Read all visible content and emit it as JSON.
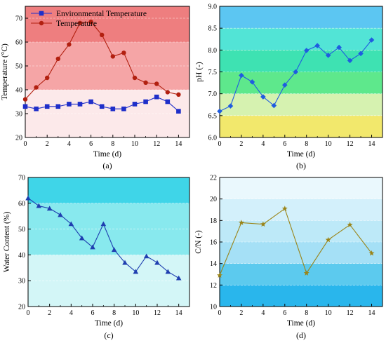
{
  "chart_data": [
    {
      "id": "a",
      "type": "line",
      "caption": "(a)",
      "xlabel": "Time (d)",
      "ylabel": "Temperature (°C)",
      "xlim": [
        0,
        15
      ],
      "ylim": [
        20,
        75
      ],
      "xticks": [
        0,
        2,
        4,
        6,
        8,
        10,
        12,
        14
      ],
      "yticks": [
        20,
        30,
        40,
        50,
        60,
        70
      ],
      "legend": "top-left",
      "background_bands": [
        {
          "from": 20,
          "to": 40,
          "color": "#fce9ea"
        },
        {
          "from": 40,
          "to": 60,
          "color": "#f5a5a6"
        },
        {
          "from": 60,
          "to": 75,
          "color": "#ee7e7f"
        }
      ],
      "series": [
        {
          "name": "Environmental Temperature",
          "color": "#1f2fc9",
          "marker": "square",
          "x": [
            0,
            1,
            2,
            3,
            4,
            5,
            6,
            7,
            8,
            9,
            10,
            11,
            12,
            13,
            14
          ],
          "y": [
            33,
            32,
            33,
            33,
            34,
            34,
            35,
            33,
            32,
            32,
            34,
            35,
            37,
            35,
            31
          ]
        },
        {
          "name": "Temperature",
          "color": "#b22010",
          "marker": "circle",
          "x": [
            0,
            1,
            2,
            3,
            4,
            5,
            6,
            7,
            8,
            9,
            10,
            11,
            12,
            13,
            14
          ],
          "y": [
            36,
            41,
            45,
            53,
            59,
            68,
            68.5,
            63,
            54,
            55.5,
            45,
            43,
            42.5,
            39,
            38
          ]
        }
      ]
    },
    {
      "id": "b",
      "type": "line",
      "caption": "(b)",
      "xlabel": "Time (d)",
      "ylabel": "pH (-)",
      "xlim": [
        0,
        15
      ],
      "ylim": [
        6.0,
        9.0
      ],
      "xticks": [
        0,
        2,
        4,
        6,
        8,
        10,
        12,
        14
      ],
      "yticks": [
        6.0,
        6.5,
        7.0,
        7.5,
        8.0,
        8.5,
        9.0
      ],
      "yticklabels": [
        "6.0",
        "6.5",
        "7.0",
        "7.5",
        "8.0",
        "8.5",
        "9.0"
      ],
      "background_bands": [
        {
          "from": 6.0,
          "to": 6.5,
          "color": "#f2e86c"
        },
        {
          "from": 6.5,
          "to": 7.0,
          "color": "#d6f2b0"
        },
        {
          "from": 7.0,
          "to": 7.5,
          "color": "#5ee88c"
        },
        {
          "from": 7.5,
          "to": 8.0,
          "color": "#3ee2b2"
        },
        {
          "from": 8.0,
          "to": 8.5,
          "color": "#52e4d6"
        },
        {
          "from": 8.5,
          "to": 9.0,
          "color": "#5cc6f2"
        }
      ],
      "series": [
        {
          "color": "#1f5ce0",
          "marker": "diamond",
          "x": [
            0,
            1,
            2,
            3,
            4,
            5,
            6,
            7,
            8,
            9,
            10,
            11,
            12,
            13,
            14
          ],
          "y": [
            6.6,
            6.72,
            7.42,
            7.27,
            6.93,
            6.73,
            7.2,
            7.5,
            7.99,
            8.1,
            7.88,
            8.06,
            7.76,
            7.92,
            8.23
          ]
        }
      ]
    },
    {
      "id": "c",
      "type": "line",
      "caption": "(c)",
      "xlabel": "Time (d)",
      "ylabel": "Water Content (%)",
      "xlim": [
        0,
        15
      ],
      "ylim": [
        20,
        70
      ],
      "xticks": [
        0,
        2,
        4,
        6,
        8,
        10,
        12,
        14
      ],
      "yticks": [
        20,
        30,
        40,
        50,
        60,
        70
      ],
      "background_bands": [
        {
          "from": 20,
          "to": 40,
          "color": "#d3f6f7"
        },
        {
          "from": 40,
          "to": 60,
          "color": "#88e9ee"
        },
        {
          "from": 60,
          "to": 70,
          "color": "#3fd5e8"
        }
      ],
      "series": [
        {
          "color": "#1f3fb0",
          "marker": "triangle",
          "x": [
            0,
            1,
            2,
            3,
            4,
            5,
            6,
            7,
            8,
            9,
            10,
            11,
            12,
            13,
            14
          ],
          "y": [
            62,
            59,
            58,
            55.5,
            52,
            46.5,
            43,
            52,
            42,
            37,
            33.5,
            39.5,
            37,
            33.5,
            31
          ]
        }
      ]
    },
    {
      "id": "d",
      "type": "line",
      "caption": "(d)",
      "xlabel": "Time (d)",
      "ylabel": "C/N (-)",
      "xlim": [
        0,
        15
      ],
      "ylim": [
        10,
        22
      ],
      "xticks": [
        0,
        2,
        4,
        6,
        8,
        10,
        12,
        14
      ],
      "yticks": [
        10,
        12,
        14,
        16,
        18,
        20,
        22
      ],
      "background_bands": [
        {
          "from": 10,
          "to": 12,
          "color": "#29b6ec"
        },
        {
          "from": 12,
          "to": 14,
          "color": "#5ccaee"
        },
        {
          "from": 14,
          "to": 16,
          "color": "#a5e0f6"
        },
        {
          "from": 16,
          "to": 18,
          "color": "#bde9f8"
        },
        {
          "from": 18,
          "to": 20,
          "color": "#d3f0fb"
        },
        {
          "from": 20,
          "to": 22,
          "color": "#eaf8fd"
        }
      ],
      "series": [
        {
          "color": "#9a8418",
          "marker": "star",
          "x": [
            0,
            2,
            4,
            6,
            8,
            10,
            12,
            14
          ],
          "y": [
            12.9,
            17.8,
            17.65,
            19.1,
            13.1,
            16.2,
            17.6,
            14.95
          ]
        }
      ]
    }
  ]
}
